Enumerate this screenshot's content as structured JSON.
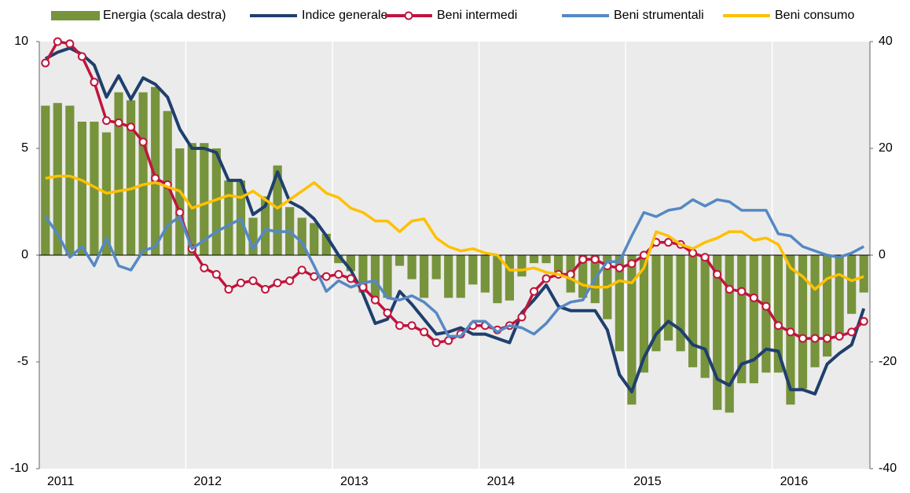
{
  "chart_data": {
    "type": "line",
    "categories": [
      "2011",
      null,
      null,
      null,
      null,
      null,
      null,
      null,
      null,
      null,
      null,
      null,
      "2012",
      null,
      null,
      null,
      null,
      null,
      null,
      null,
      null,
      null,
      null,
      null,
      "2013",
      null,
      null,
      null,
      null,
      null,
      null,
      null,
      null,
      null,
      null,
      null,
      "2014",
      null,
      null,
      null,
      null,
      null,
      null,
      null,
      null,
      null,
      null,
      null,
      "2015",
      null,
      null,
      null,
      null,
      null,
      null,
      null,
      null,
      null,
      null,
      null,
      "2016",
      null,
      null,
      null,
      null,
      null,
      null,
      null
    ],
    "ylim": [
      -10,
      10
    ],
    "yticks": [
      -10,
      -5,
      0,
      5,
      10
    ],
    "y2lim": [
      -40,
      40
    ],
    "y2ticks": [
      -40,
      -20,
      0,
      20,
      40
    ],
    "series": [
      {
        "name": "Energia (scala destra)",
        "type": "bar",
        "axis": "y2",
        "color": "#77933c",
        "values": [
          28,
          28.5,
          28,
          25,
          25,
          23,
          30.5,
          29,
          30.5,
          31.5,
          27,
          20,
          21,
          21,
          20,
          14,
          14,
          7,
          11,
          16.8,
          9,
          7,
          6,
          4,
          -1.5,
          -3,
          -7,
          -8,
          -8,
          -2,
          -4.5,
          -8,
          -4.5,
          -8,
          -8,
          -5.5,
          -7,
          -9,
          -8.5,
          -4,
          -1.5,
          -1.5,
          -4,
          -7,
          -8,
          -9,
          -12,
          -18,
          -28,
          -22,
          -18,
          -16,
          -18,
          -21,
          -23,
          -29,
          -29.5,
          -24,
          -24,
          -22,
          -22,
          -28,
          -25,
          -21,
          -19,
          -15,
          -11,
          -7
        ]
      },
      {
        "name": "Indice generale",
        "color": "#1f3f6e",
        "values": [
          9.2,
          9.5,
          9.7,
          9.4,
          8.9,
          7.4,
          8.4,
          7.3,
          8.3,
          8.0,
          7.4,
          5.9,
          5.0,
          5.0,
          4.8,
          3.5,
          3.5,
          1.9,
          2.3,
          3.9,
          2.5,
          2.2,
          1.7,
          0.9,
          0.0,
          -0.7,
          -1.8,
          -3.2,
          -3.0,
          -1.7,
          -2.3,
          -3.0,
          -3.7,
          -3.6,
          -3.4,
          -3.7,
          -3.7,
          -3.9,
          -4.1,
          -2.7,
          -2.1,
          -1.4,
          -2.4,
          -2.6,
          -2.6,
          -2.6,
          -3.5,
          -5.6,
          -6.4,
          -4.8,
          -3.7,
          -3.1,
          -3.5,
          -4.2,
          -4.4,
          -5.8,
          -6.1,
          -5.1,
          -4.9,
          -4.4,
          -4.5,
          -6.3,
          -6.3,
          -6.5,
          -5.1,
          -4.6,
          -4.2,
          -2.5
        ]
      },
      {
        "name": "Beni intermedi",
        "color": "#c0143c",
        "marker": "circle",
        "values": [
          9.0,
          10.0,
          9.9,
          9.3,
          8.1,
          6.3,
          6.2,
          6.0,
          5.3,
          3.6,
          3.3,
          2.0,
          0.3,
          -0.6,
          -0.9,
          -1.6,
          -1.3,
          -1.2,
          -1.6,
          -1.3,
          -1.2,
          -0.7,
          -1.0,
          -1.0,
          -0.9,
          -1.1,
          -1.5,
          -2.1,
          -2.7,
          -3.3,
          -3.3,
          -3.6,
          -4.1,
          -4.0,
          -3.7,
          -3.3,
          -3.3,
          -3.5,
          -3.3,
          -2.9,
          -1.7,
          -1.1,
          -0.9,
          -0.9,
          -0.2,
          -0.2,
          -0.5,
          -0.6,
          -0.4,
          0.0,
          0.6,
          0.6,
          0.5,
          0.1,
          -0.1,
          -0.9,
          -1.6,
          -1.7,
          -2.0,
          -2.4,
          -3.3,
          -3.6,
          -3.9,
          -3.9,
          -3.9,
          -3.8,
          -3.6,
          -3.1
        ]
      },
      {
        "name": "Beni strumentali",
        "color": "#5588c4",
        "values": [
          1.8,
          1.0,
          -0.1,
          0.4,
          -0.5,
          0.8,
          -0.5,
          -0.7,
          0.2,
          0.4,
          1.4,
          1.8,
          0.3,
          0.7,
          1.1,
          1.4,
          1.7,
          0.3,
          1.2,
          1.1,
          1.1,
          0.6,
          -0.5,
          -1.7,
          -1.2,
          -1.5,
          -1.3,
          -1.2,
          -2.0,
          -2.1,
          -1.9,
          -2.2,
          -2.7,
          -3.8,
          -3.8,
          -3.1,
          -3.1,
          -3.6,
          -3.3,
          -3.4,
          -3.7,
          -3.2,
          -2.5,
          -2.2,
          -2.1,
          -1.1,
          -0.3,
          -0.3,
          0.9,
          2.0,
          1.8,
          2.1,
          2.2,
          2.6,
          2.3,
          2.6,
          2.5,
          2.1,
          2.1,
          2.1,
          1.0,
          0.9,
          0.4,
          0.2,
          0.0,
          -0.1,
          0.1,
          0.4
        ]
      },
      {
        "name": "Beni consumo",
        "color": "#ffc000",
        "values": [
          3.6,
          3.7,
          3.7,
          3.5,
          3.2,
          2.9,
          3.0,
          3.1,
          3.3,
          3.4,
          3.2,
          3.0,
          2.2,
          2.4,
          2.6,
          2.8,
          2.7,
          3.0,
          2.6,
          2.2,
          2.6,
          3.0,
          3.4,
          2.9,
          2.7,
          2.2,
          2.0,
          1.6,
          1.6,
          1.1,
          1.6,
          1.7,
          0.8,
          0.4,
          0.2,
          0.3,
          0.1,
          0.0,
          -0.7,
          -0.7,
          -0.6,
          -0.8,
          -0.9,
          -1.1,
          -1.4,
          -1.5,
          -1.5,
          -1.2,
          -1.3,
          -0.6,
          1.1,
          0.9,
          0.5,
          0.3,
          0.6,
          0.8,
          1.1,
          1.1,
          0.7,
          0.8,
          0.5,
          -0.6,
          -1.0,
          -1.6,
          -1.1,
          -0.9,
          -1.2,
          -1.0
        ]
      }
    ]
  }
}
